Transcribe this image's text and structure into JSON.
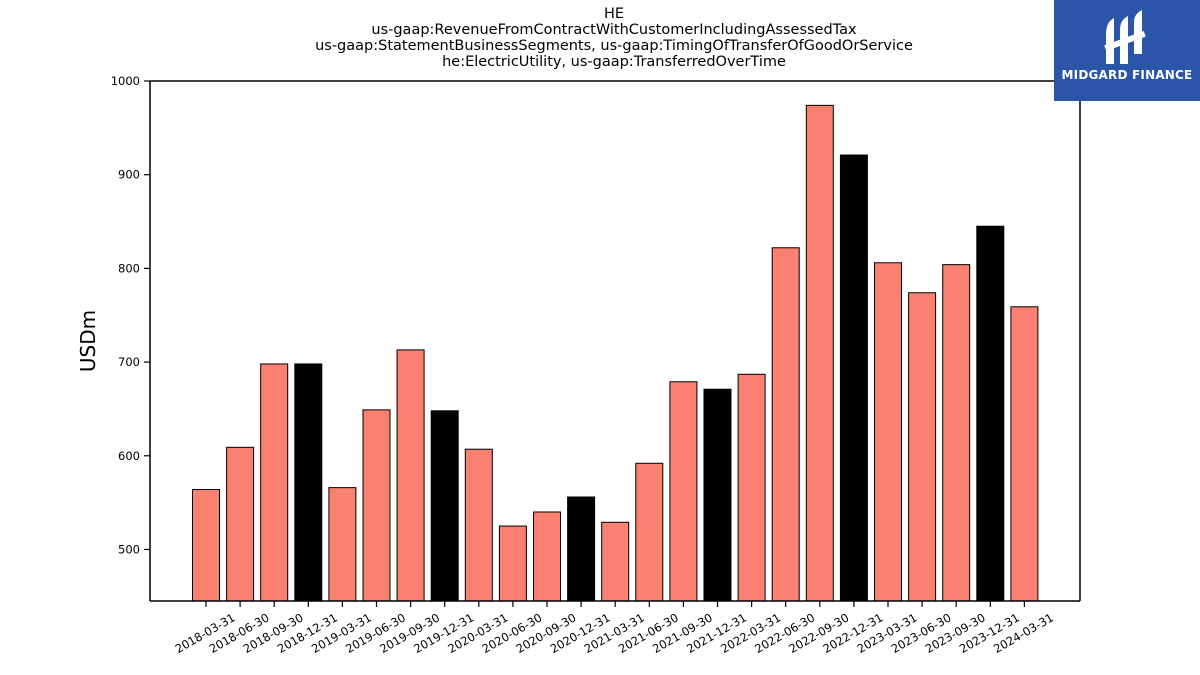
{
  "chart_data": {
    "type": "bar",
    "title_lines": [
      "HE",
      "us-gaap:RevenueFromContractWithCustomerIncludingAssessedTax",
      "us-gaap:StatementBusinessSegments, us-gaap:TimingOfTransferOfGoodOrService",
      "he:ElectricUtility, us-gaap:TransferredOverTime"
    ],
    "xlabel": "",
    "ylabel": "USDm",
    "ylim": [
      445,
      1000
    ],
    "yticks": [
      500,
      600,
      700,
      800,
      900,
      1000
    ],
    "grid": false,
    "categories": [
      "2018-03-31",
      "2018-06-30",
      "2018-09-30",
      "2018-12-31",
      "2019-03-31",
      "2019-06-30",
      "2019-09-30",
      "2019-12-31",
      "2020-03-31",
      "2020-06-30",
      "2020-09-30",
      "2020-12-31",
      "2021-03-31",
      "2021-06-30",
      "2021-09-30",
      "2021-12-31",
      "2022-03-31",
      "2022-06-30",
      "2022-09-30",
      "2022-12-31",
      "2023-03-31",
      "2023-06-30",
      "2023-09-30",
      "2023-12-31",
      "2024-03-31"
    ],
    "values": [
      564,
      609,
      698,
      698,
      566,
      649,
      713,
      648,
      607,
      525,
      540,
      556,
      529,
      592,
      679,
      671,
      687,
      822,
      974,
      921,
      806,
      774,
      804,
      845,
      759
    ],
    "colors": {
      "quarter": "#fa8072",
      "year_end": "#000000",
      "edge": "#000000"
    }
  },
  "logo": {
    "text": "MIDGARD FINANCE",
    "background": "#2a55a8"
  }
}
